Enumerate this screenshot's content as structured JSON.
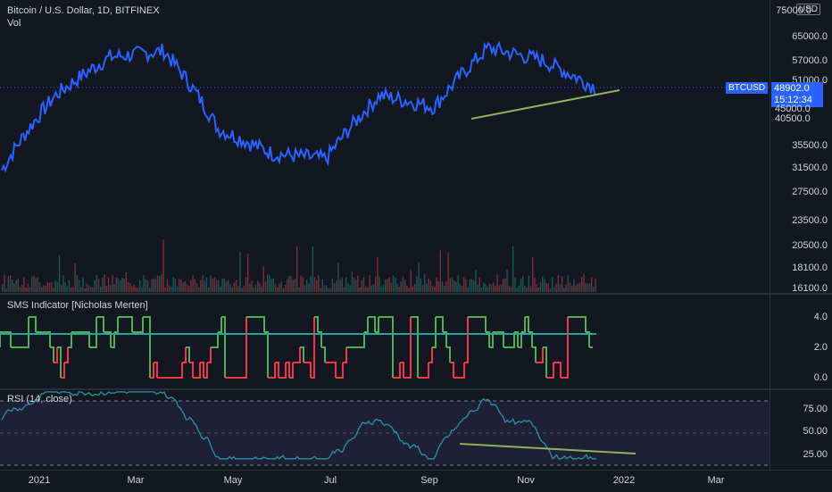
{
  "header": {
    "title": "Bitcoin / U.S. Dollar, 1D, BITFINEX",
    "vol_label": "Vol",
    "currency_badge": "USD"
  },
  "price_axis": {
    "ticks": [
      "75000.0",
      "65000.0",
      "57000.0",
      "51000.0",
      "45000.0",
      "40500.0",
      "35500.0",
      "31500.0",
      "27500.0",
      "23500.0",
      "20500.0",
      "18100.0",
      "16100.0"
    ],
    "symbol_tag": "BTCUSD",
    "last_price": "48902.0",
    "countdown": "15:12:34"
  },
  "sms_indicator": {
    "title": "SMS Indicator [Nicholas Merten]",
    "ticks": [
      "4.0",
      "2.0",
      "0.0"
    ],
    "last_value": "3.0"
  },
  "rsi_indicator": {
    "title": "RSI (14, close)",
    "ticks": [
      "75.00",
      "50.00",
      "25.00"
    ]
  },
  "time_axis": {
    "labels": [
      "2021",
      "Mar",
      "May",
      "Jul",
      "Sep",
      "Nov",
      "2022",
      "Mar"
    ]
  },
  "colors": {
    "background": "#131722",
    "price_line": "#2962ff",
    "trendline": "#8db35a",
    "sms_bull": "#4caf50",
    "sms_bear": "#f23645",
    "sms_mid": "#26a69a",
    "rsi_line": "#2196a8",
    "rsi_band": "#7e57c2"
  },
  "chart_data": {
    "type": "line",
    "title": "Bitcoin / U.S. Dollar, 1D, BITFINEX",
    "x": [
      "2021-01",
      "2021-02",
      "2021-03",
      "2021-04",
      "2021-05",
      "2021-06",
      "2021-07",
      "2021-08",
      "2021-09",
      "2021-10",
      "2021-11",
      "2021-12"
    ],
    "series": [
      {
        "name": "BTCUSD",
        "values": [
          31000,
          47000,
          58000,
          60000,
          39000,
          34000,
          33000,
          47000,
          44000,
          61000,
          57000,
          48902
        ]
      }
    ],
    "ylim": [
      16100,
      75000
    ],
    "scale": "log",
    "rsi_ylim": [
      25,
      75
    ],
    "sms_ylim": [
      0,
      4
    ]
  }
}
